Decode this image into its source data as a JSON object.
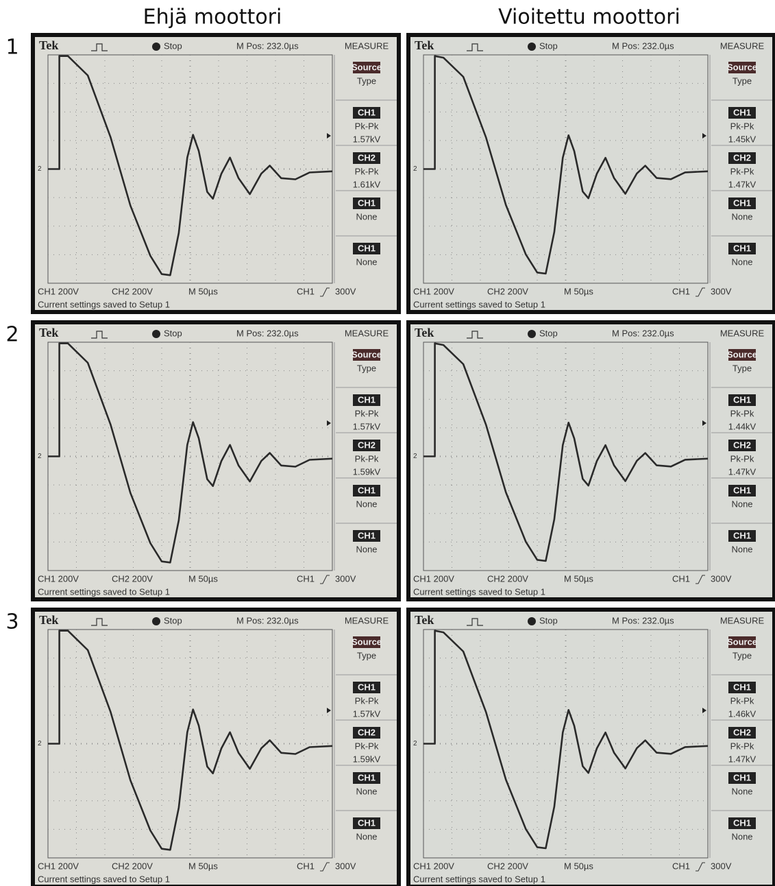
{
  "columns": [
    "Ehjä moottori",
    "Vioitettu moottori"
  ],
  "rows": [
    {
      "label": "1",
      "screens": [
        {
          "brand": "Tek",
          "state": "Stop",
          "mpos": "M Pos: 232.0µs",
          "menu_title": "MEASURE",
          "menu": [
            {
              "label": "Source",
              "sub": "Type"
            },
            {
              "label": "CH1",
              "sub": "Pk-Pk",
              "value": "1.57kV"
            },
            {
              "label": "CH2",
              "sub": "Pk-Pk",
              "value": "1.61kV"
            },
            {
              "label": "CH1",
              "sub": "None"
            },
            {
              "label": "CH1",
              "sub": "None"
            }
          ],
          "ch1": "CH1 200V",
          "ch2": "CH2 200V",
          "time": "M 50µs",
          "trigger": "CH1",
          "trigger_level": "300V",
          "status": "Current settings saved to Setup 1",
          "marker": "2"
        },
        {
          "brand": "Tek",
          "state": "Stop",
          "mpos": "M Pos: 232.0µs",
          "menu_title": "MEASURE",
          "menu": [
            {
              "label": "Source",
              "sub": "Type"
            },
            {
              "label": "CH1",
              "sub": "Pk-Pk",
              "value": "1.45kV"
            },
            {
              "label": "CH2",
              "sub": "Pk-Pk",
              "value": "1.47kV"
            },
            {
              "label": "CH1",
              "sub": "None"
            },
            {
              "label": "CH1",
              "sub": "None"
            }
          ],
          "ch1": "CH1 200V",
          "ch2": "CH2 200V",
          "time": "M 50µs",
          "trigger": "CH1",
          "trigger_level": "300V",
          "status": "Current settings saved to Setup 1",
          "marker": "2"
        }
      ]
    },
    {
      "label": "2",
      "screens": [
        {
          "brand": "Tek",
          "state": "Stop",
          "mpos": "M Pos: 232.0µs",
          "menu_title": "MEASURE",
          "menu": [
            {
              "label": "Source",
              "sub": "Type"
            },
            {
              "label": "CH1",
              "sub": "Pk-Pk",
              "value": "1.57kV"
            },
            {
              "label": "CH2",
              "sub": "Pk-Pk",
              "value": "1.59kV"
            },
            {
              "label": "CH1",
              "sub": "None"
            },
            {
              "label": "CH1",
              "sub": "None"
            }
          ],
          "ch1": "CH1 200V",
          "ch2": "CH2 200V",
          "time": "M 50µs",
          "trigger": "CH1",
          "trigger_level": "300V",
          "status": "Current settings saved to Setup 1",
          "marker": "2"
        },
        {
          "brand": "Tek",
          "state": "Stop",
          "mpos": "M Pos: 232.0µs",
          "menu_title": "MEASURE",
          "menu": [
            {
              "label": "Source",
              "sub": "Type"
            },
            {
              "label": "CH1",
              "sub": "Pk-Pk",
              "value": "1.44kV"
            },
            {
              "label": "CH2",
              "sub": "Pk-Pk",
              "value": "1.47kV"
            },
            {
              "label": "CH1",
              "sub": "None"
            },
            {
              "label": "CH1",
              "sub": "None"
            }
          ],
          "ch1": "CH1 200V",
          "ch2": "CH2 200V",
          "time": "M 50µs",
          "trigger": "CH1",
          "trigger_level": "300V",
          "status": "Current settings saved to Setup 1",
          "marker": "2"
        }
      ]
    },
    {
      "label": "3",
      "screens": [
        {
          "brand": "Tek",
          "state": "Stop",
          "mpos": "M Pos: 232.0µs",
          "menu_title": "MEASURE",
          "menu": [
            {
              "label": "Source",
              "sub": "Type"
            },
            {
              "label": "CH1",
              "sub": "Pk-Pk",
              "value": "1.57kV"
            },
            {
              "label": "CH2",
              "sub": "Pk-Pk",
              "value": "1.59kV"
            },
            {
              "label": "CH1",
              "sub": "None"
            },
            {
              "label": "CH1",
              "sub": "None"
            }
          ],
          "ch1": "CH1 200V",
          "ch2": "CH2 200V",
          "time": "M 50µs",
          "trigger": "CH1",
          "trigger_level": "300V",
          "status": "Current settings saved to Setup 1",
          "marker": "2"
        },
        {
          "brand": "Tek",
          "state": "Stop",
          "mpos": "M Pos: 232.0µs",
          "menu_title": "MEASURE",
          "menu": [
            {
              "label": "Source",
              "sub": "Type"
            },
            {
              "label": "CH1",
              "sub": "Pk-Pk",
              "value": "1.46kV"
            },
            {
              "label": "CH2",
              "sub": "Pk-Pk",
              "value": "1.47kV"
            },
            {
              "label": "CH1",
              "sub": "None"
            },
            {
              "label": "CH1",
              "sub": "None"
            }
          ],
          "ch1": "CH1 200V",
          "ch2": "CH2 200V",
          "time": "M 50µs",
          "trigger": "CH1",
          "trigger_level": "300V",
          "status": "Current settings saved to Setup 1",
          "marker": "2"
        }
      ]
    }
  ]
}
